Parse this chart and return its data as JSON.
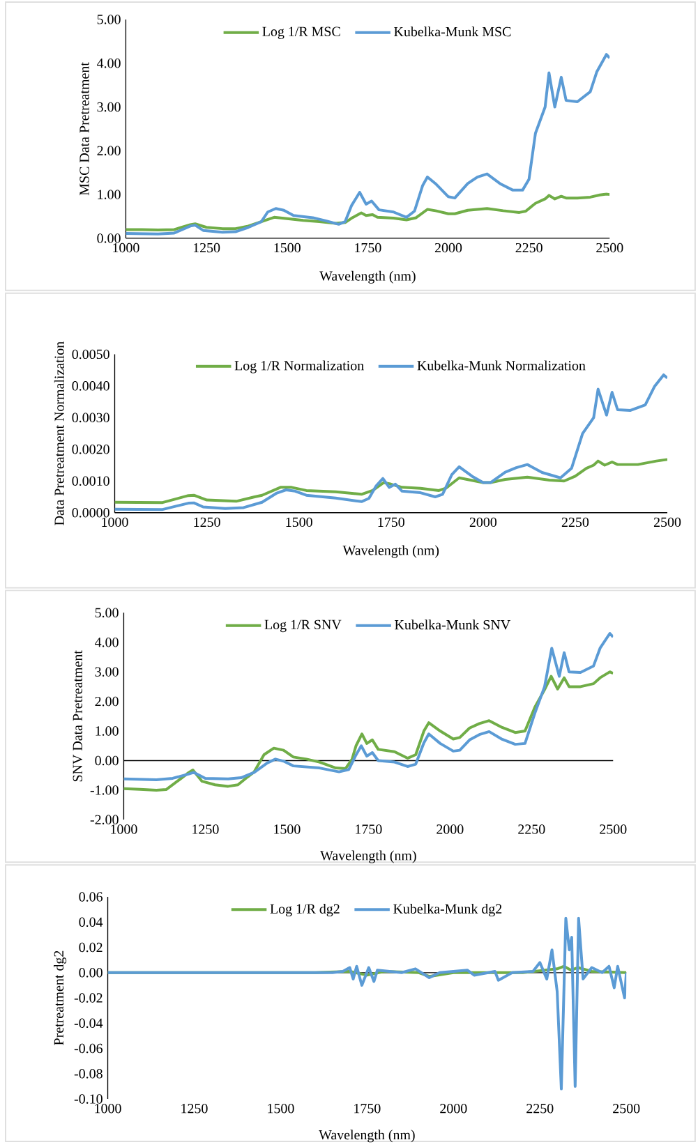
{
  "chart_data": [
    {
      "type": "line",
      "xlabel": "Wavelength (nm)",
      "ylabel": "MSC Data Pretreatment",
      "xlim": [
        1000,
        2500
      ],
      "ylim": [
        0,
        5
      ],
      "xticks": [
        1000,
        1250,
        1500,
        1750,
        2000,
        2250,
        2500
      ],
      "yticks": [
        {
          "value": 0,
          "label": "0.00"
        },
        {
          "value": 1,
          "label": "1.00"
        },
        {
          "value": 2,
          "label": "2.00"
        },
        {
          "value": 3,
          "label": "3.00"
        },
        {
          "value": 4,
          "label": "4.00"
        },
        {
          "value": 5,
          "label": "5.00"
        }
      ],
      "legend": "top",
      "marker": "none",
      "series": [
        {
          "name": "Log 1/R MSC",
          "color": "#70ad47",
          "x": [
            1000,
            1050,
            1100,
            1150,
            1200,
            1215,
            1250,
            1300,
            1340,
            1380,
            1420,
            1460,
            1500,
            1550,
            1600,
            1650,
            1680,
            1700,
            1730,
            1745,
            1765,
            1780,
            1830,
            1870,
            1900,
            1935,
            1960,
            2000,
            2020,
            2060,
            2120,
            2170,
            2220,
            2240,
            2270,
            2300,
            2312,
            2330,
            2350,
            2365,
            2400,
            2440,
            2470,
            2490,
            2500
          ],
          "values": [
            0.2,
            0.2,
            0.19,
            0.2,
            0.31,
            0.33,
            0.25,
            0.22,
            0.22,
            0.28,
            0.38,
            0.48,
            0.45,
            0.41,
            0.38,
            0.34,
            0.36,
            0.46,
            0.58,
            0.52,
            0.54,
            0.48,
            0.46,
            0.42,
            0.47,
            0.66,
            0.63,
            0.56,
            0.56,
            0.64,
            0.68,
            0.63,
            0.59,
            0.62,
            0.8,
            0.9,
            0.98,
            0.9,
            0.96,
            0.92,
            0.92,
            0.94,
            0.99,
            1.01,
            1.0
          ]
        },
        {
          "name": "Kubelka-Munk MSC",
          "color": "#5b9bd5",
          "x": [
            1000,
            1100,
            1150,
            1200,
            1215,
            1240,
            1300,
            1340,
            1380,
            1420,
            1440,
            1465,
            1490,
            1520,
            1580,
            1620,
            1660,
            1680,
            1700,
            1725,
            1745,
            1762,
            1785,
            1830,
            1870,
            1895,
            1920,
            1935,
            1960,
            2000,
            2020,
            2060,
            2090,
            2120,
            2160,
            2200,
            2230,
            2250,
            2270,
            2300,
            2312,
            2330,
            2350,
            2365,
            2400,
            2440,
            2460,
            2490,
            2500
          ],
          "values": [
            0.11,
            0.1,
            0.12,
            0.28,
            0.3,
            0.18,
            0.14,
            0.15,
            0.25,
            0.38,
            0.6,
            0.68,
            0.64,
            0.52,
            0.47,
            0.4,
            0.32,
            0.38,
            0.75,
            1.05,
            0.78,
            0.85,
            0.65,
            0.6,
            0.48,
            0.62,
            1.2,
            1.4,
            1.25,
            0.95,
            0.92,
            1.25,
            1.4,
            1.47,
            1.25,
            1.1,
            1.1,
            1.35,
            2.4,
            3.0,
            3.78,
            3.0,
            3.68,
            3.15,
            3.12,
            3.35,
            3.8,
            4.2,
            4.12
          ]
        }
      ]
    },
    {
      "type": "line",
      "xlabel": "Wavelength (nm)",
      "ylabel": "Data Pretreatment Normalization",
      "xlim": [
        1000,
        2500
      ],
      "ylim": [
        0,
        0.005
      ],
      "xticks": [
        1000,
        1250,
        1500,
        1750,
        2000,
        2250,
        2500
      ],
      "yticks": [
        {
          "value": 0,
          "label": "0.0000"
        },
        {
          "value": 0.001,
          "label": "0.0010"
        },
        {
          "value": 0.002,
          "label": "0.0020"
        },
        {
          "value": 0.003,
          "label": "0.0030"
        },
        {
          "value": 0.004,
          "label": "0.0040"
        },
        {
          "value": 0.005,
          "label": "0.0050"
        }
      ],
      "legend": "top",
      "marker": "none",
      "series": [
        {
          "name": "Log 1/R Normalization",
          "color": "#70ad47",
          "x": [
            1000,
            1130,
            1200,
            1215,
            1250,
            1330,
            1380,
            1400,
            1450,
            1480,
            1520,
            1600,
            1670,
            1700,
            1730,
            1750,
            1780,
            1830,
            1880,
            1900,
            1935,
            2000,
            2020,
            2060,
            2120,
            2180,
            2220,
            2250,
            2280,
            2300,
            2312,
            2330,
            2350,
            2365,
            2420,
            2470,
            2500
          ],
          "values": [
            0.00033,
            0.00032,
            0.00054,
            0.00055,
            0.0004,
            0.00036,
            0.0005,
            0.00055,
            0.0008,
            0.0008,
            0.0007,
            0.00066,
            0.00058,
            0.0007,
            0.00095,
            0.0009,
            0.0008,
            0.00077,
            0.0007,
            0.00078,
            0.0011,
            0.00095,
            0.00095,
            0.00105,
            0.00112,
            0.00103,
            0.001,
            0.00115,
            0.0014,
            0.0015,
            0.00163,
            0.0015,
            0.0016,
            0.00152,
            0.00152,
            0.00163,
            0.00168
          ]
        },
        {
          "name": "Kubelka-Munk Normalization",
          "color": "#5b9bd5",
          "x": [
            1000,
            1130,
            1200,
            1215,
            1240,
            1300,
            1350,
            1400,
            1440,
            1465,
            1490,
            1520,
            1600,
            1670,
            1690,
            1710,
            1728,
            1745,
            1762,
            1780,
            1830,
            1870,
            1890,
            1915,
            1935,
            1970,
            2000,
            2020,
            2060,
            2090,
            2120,
            2160,
            2210,
            2240,
            2270,
            2300,
            2312,
            2335,
            2350,
            2365,
            2400,
            2440,
            2465,
            2490,
            2500
          ],
          "values": [
            0.00011,
            0.0001,
            0.0003,
            0.00031,
            0.00018,
            0.00013,
            0.00016,
            0.00033,
            0.00062,
            0.00072,
            0.00068,
            0.00055,
            0.00046,
            0.00035,
            0.00045,
            0.00085,
            0.00108,
            0.0008,
            0.0009,
            0.00068,
            0.00063,
            0.0005,
            0.00058,
            0.0012,
            0.00145,
            0.00115,
            0.00095,
            0.00095,
            0.00128,
            0.00142,
            0.00152,
            0.00127,
            0.0011,
            0.0014,
            0.0025,
            0.003,
            0.0039,
            0.00308,
            0.0038,
            0.00325,
            0.00323,
            0.0034,
            0.00398,
            0.00435,
            0.00425
          ]
        }
      ]
    },
    {
      "type": "line",
      "xlabel": "Wavelength (nm)",
      "ylabel": "SNV Data Pretreatment",
      "xlim": [
        1000,
        2500
      ],
      "ylim": [
        -2,
        5
      ],
      "xticks": [
        1000,
        1250,
        1500,
        1750,
        2000,
        2250,
        2500
      ],
      "yticks": [
        {
          "value": -2,
          "label": "-2.00"
        },
        {
          "value": -1,
          "label": "-1.00"
        },
        {
          "value": 0,
          "label": "0.00"
        },
        {
          "value": 1,
          "label": "1.00"
        },
        {
          "value": 2,
          "label": "2.00"
        },
        {
          "value": 3,
          "label": "3.00"
        },
        {
          "value": 4,
          "label": "4.00"
        },
        {
          "value": 5,
          "label": "5.00"
        }
      ],
      "legend": "top",
      "marker": "none",
      "series": [
        {
          "name": "Log 1/R SNV",
          "color": "#70ad47",
          "x": [
            1000,
            1050,
            1100,
            1130,
            1170,
            1200,
            1212,
            1240,
            1280,
            1320,
            1350,
            1380,
            1400,
            1430,
            1460,
            1490,
            1520,
            1560,
            1600,
            1650,
            1680,
            1700,
            1712,
            1730,
            1745,
            1762,
            1780,
            1830,
            1870,
            1895,
            1920,
            1935,
            1970,
            2010,
            2030,
            2060,
            2090,
            2120,
            2160,
            2200,
            2230,
            2260,
            2290,
            2310,
            2330,
            2350,
            2365,
            2400,
            2440,
            2460,
            2490,
            2500
          ],
          "values": [
            -0.95,
            -0.97,
            -1.0,
            -0.98,
            -0.65,
            -0.4,
            -0.32,
            -0.7,
            -0.82,
            -0.87,
            -0.82,
            -0.55,
            -0.38,
            0.2,
            0.42,
            0.35,
            0.12,
            0.05,
            -0.05,
            -0.25,
            -0.27,
            0.05,
            0.5,
            0.9,
            0.58,
            0.7,
            0.38,
            0.3,
            0.08,
            0.2,
            1.0,
            1.28,
            1.0,
            0.73,
            0.78,
            1.1,
            1.25,
            1.35,
            1.12,
            0.95,
            1.0,
            1.8,
            2.4,
            2.85,
            2.42,
            2.8,
            2.5,
            2.5,
            2.6,
            2.8,
            3.0,
            2.95
          ]
        },
        {
          "name": "Kubelka-Munk SNV",
          "color": "#5b9bd5",
          "x": [
            1000,
            1100,
            1150,
            1200,
            1215,
            1250,
            1320,
            1360,
            1400,
            1440,
            1465,
            1490,
            1520,
            1600,
            1660,
            1690,
            1710,
            1728,
            1745,
            1762,
            1780,
            1830,
            1870,
            1895,
            1920,
            1935,
            1970,
            2010,
            2030,
            2060,
            2090,
            2120,
            2160,
            2200,
            2230,
            2260,
            2290,
            2312,
            2335,
            2350,
            2365,
            2400,
            2440,
            2460,
            2490,
            2500
          ],
          "values": [
            -0.62,
            -0.65,
            -0.6,
            -0.45,
            -0.4,
            -0.6,
            -0.62,
            -0.58,
            -0.4,
            -0.08,
            0.05,
            -0.02,
            -0.18,
            -0.25,
            -0.38,
            -0.3,
            0.15,
            0.5,
            0.15,
            0.27,
            0.0,
            -0.05,
            -0.2,
            -0.12,
            0.6,
            0.9,
            0.58,
            0.32,
            0.35,
            0.7,
            0.88,
            0.98,
            0.72,
            0.55,
            0.58,
            1.6,
            2.5,
            3.8,
            2.85,
            3.65,
            3.0,
            2.98,
            3.2,
            3.8,
            4.3,
            4.18
          ]
        }
      ]
    },
    {
      "type": "line",
      "xlabel": "Wavelength (nm)",
      "ylabel": "Pretreatment  dg2",
      "xlim": [
        1000,
        2500
      ],
      "ylim": [
        -0.1,
        0.06
      ],
      "xticks": [
        1000,
        1250,
        1500,
        1750,
        2000,
        2250,
        2500
      ],
      "yticks": [
        {
          "value": -0.1,
          "label": "-0.10"
        },
        {
          "value": -0.08,
          "label": "-0.08"
        },
        {
          "value": -0.06,
          "label": "-0.06"
        },
        {
          "value": -0.04,
          "label": "-0.04"
        },
        {
          "value": -0.02,
          "label": "-0.02"
        },
        {
          "value": 0,
          "label": "0.00"
        },
        {
          "value": 0.02,
          "label": "0.02"
        },
        {
          "value": 0.04,
          "label": "0.04"
        },
        {
          "value": 0.06,
          "label": "0.06"
        }
      ],
      "legend": "top",
      "marker": "none",
      "series": [
        {
          "name": "Log 1/R  dg2",
          "color": "#70ad47",
          "x": [
            1000,
            1600,
            1700,
            1750,
            1800,
            1900,
            1930,
            2000,
            2200,
            2300,
            2320,
            2340,
            2360,
            2400,
            2500
          ],
          "values": [
            0,
            0,
            0.001,
            -0.002,
            0.001,
            0,
            -0.003,
            0,
            0,
            0.003,
            0.005,
            0.002,
            0.004,
            0.001,
            0
          ]
        },
        {
          "name": "Kubelka-Munk dg2",
          "color": "#5b9bd5",
          "x": [
            1000,
            1400,
            1650,
            1680,
            1700,
            1710,
            1720,
            1735,
            1755,
            1770,
            1780,
            1850,
            1890,
            1930,
            1960,
            2040,
            2060,
            2120,
            2130,
            2170,
            2230,
            2250,
            2270,
            2285,
            2300,
            2312,
            2325,
            2335,
            2342,
            2352,
            2362,
            2375,
            2400,
            2430,
            2450,
            2465,
            2475,
            2495,
            2500
          ],
          "values": [
            0,
            0,
            0,
            0.001,
            0.004,
            -0.005,
            0.005,
            -0.01,
            0.004,
            -0.007,
            0.002,
            0,
            0.003,
            -0.004,
            0,
            0.002,
            -0.002,
            0.001,
            -0.006,
            0,
            0.001,
            0.008,
            -0.005,
            0.018,
            -0.015,
            -0.092,
            0.043,
            0.018,
            0.028,
            -0.09,
            0.043,
            -0.005,
            0.004,
            0,
            0.005,
            -0.012,
            0.005,
            -0.02,
            0
          ]
        }
      ]
    }
  ]
}
